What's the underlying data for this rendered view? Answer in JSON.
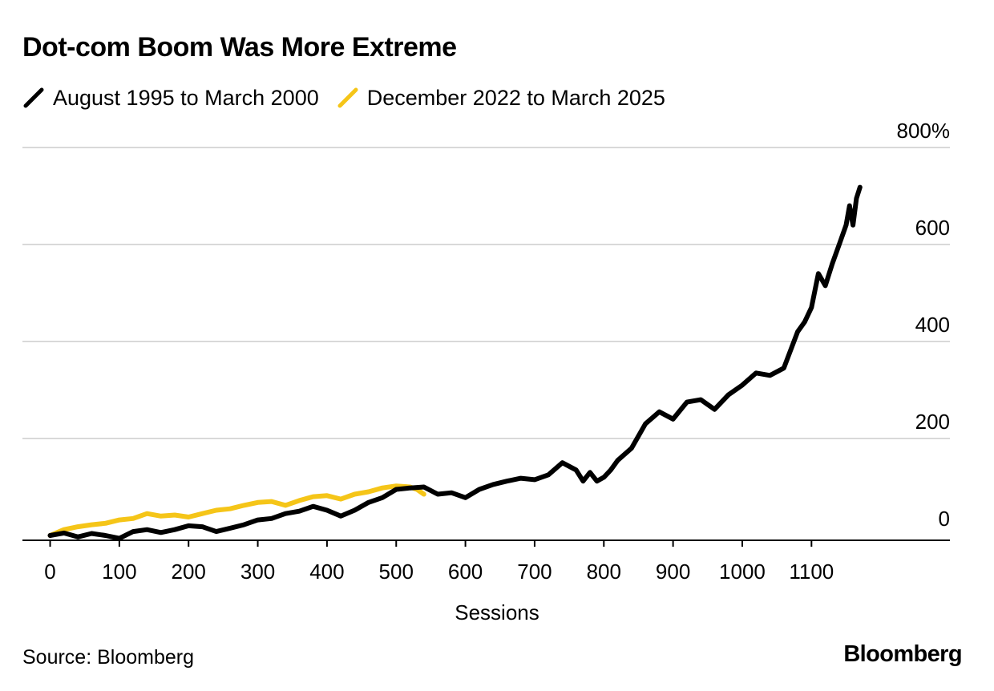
{
  "title": "Dot-com Boom Was More Extreme",
  "source": "Source: Bloomberg",
  "brand": "Bloomberg",
  "chart_data": {
    "type": "line",
    "title": "Dot-com Boom Was More Extreme",
    "xlabel": "Sessions",
    "ylabel": "",
    "xlim": [
      -40,
      1300
    ],
    "ylim": [
      -10,
      800
    ],
    "x_ticks": [
      "0",
      "100",
      "200",
      "300",
      "400",
      "500",
      "600",
      "700",
      "800",
      "900",
      "1000",
      "1100"
    ],
    "x_tick_values": [
      0,
      100,
      200,
      300,
      400,
      500,
      600,
      700,
      800,
      900,
      1000,
      1100
    ],
    "y_ticks": [
      "0",
      "200",
      "400",
      "600",
      "800%"
    ],
    "y_tick_values": [
      0,
      200,
      400,
      600,
      800
    ],
    "grid": "horizontal",
    "legend_position": "top-left",
    "series": [
      {
        "name": "August 1995 to March 2000",
        "color": "#000000",
        "points": [
          [
            0,
            0
          ],
          [
            20,
            5
          ],
          [
            40,
            -3
          ],
          [
            60,
            4
          ],
          [
            80,
            0
          ],
          [
            100,
            -6
          ],
          [
            120,
            8
          ],
          [
            140,
            12
          ],
          [
            160,
            6
          ],
          [
            180,
            12
          ],
          [
            200,
            20
          ],
          [
            220,
            18
          ],
          [
            240,
            8
          ],
          [
            260,
            15
          ],
          [
            280,
            22
          ],
          [
            300,
            32
          ],
          [
            320,
            35
          ],
          [
            340,
            45
          ],
          [
            360,
            50
          ],
          [
            380,
            60
          ],
          [
            400,
            52
          ],
          [
            420,
            40
          ],
          [
            440,
            52
          ],
          [
            460,
            68
          ],
          [
            480,
            78
          ],
          [
            500,
            95
          ],
          [
            520,
            98
          ],
          [
            540,
            100
          ],
          [
            560,
            85
          ],
          [
            580,
            88
          ],
          [
            600,
            78
          ],
          [
            620,
            95
          ],
          [
            640,
            105
          ],
          [
            660,
            112
          ],
          [
            680,
            118
          ],
          [
            700,
            115
          ],
          [
            720,
            125
          ],
          [
            740,
            150
          ],
          [
            760,
            135
          ],
          [
            770,
            112
          ],
          [
            780,
            130
          ],
          [
            790,
            112
          ],
          [
            800,
            120
          ],
          [
            810,
            135
          ],
          [
            820,
            155
          ],
          [
            840,
            180
          ],
          [
            860,
            230
          ],
          [
            880,
            255
          ],
          [
            900,
            240
          ],
          [
            920,
            275
          ],
          [
            940,
            280
          ],
          [
            960,
            260
          ],
          [
            980,
            290
          ],
          [
            1000,
            310
          ],
          [
            1020,
            335
          ],
          [
            1040,
            330
          ],
          [
            1060,
            345
          ],
          [
            1080,
            420
          ],
          [
            1090,
            440
          ],
          [
            1100,
            470
          ],
          [
            1110,
            540
          ],
          [
            1120,
            515
          ],
          [
            1130,
            560
          ],
          [
            1140,
            600
          ],
          [
            1150,
            640
          ],
          [
            1155,
            680
          ],
          [
            1160,
            640
          ],
          [
            1165,
            695
          ],
          [
            1170,
            718
          ]
        ]
      },
      {
        "name": "December 2022 to March 2025",
        "color": "#F5C518",
        "points": [
          [
            0,
            0
          ],
          [
            20,
            12
          ],
          [
            40,
            18
          ],
          [
            60,
            22
          ],
          [
            80,
            25
          ],
          [
            100,
            32
          ],
          [
            120,
            35
          ],
          [
            140,
            45
          ],
          [
            160,
            40
          ],
          [
            180,
            42
          ],
          [
            200,
            38
          ],
          [
            220,
            45
          ],
          [
            240,
            52
          ],
          [
            260,
            55
          ],
          [
            280,
            62
          ],
          [
            300,
            68
          ],
          [
            320,
            70
          ],
          [
            340,
            62
          ],
          [
            360,
            72
          ],
          [
            380,
            80
          ],
          [
            400,
            82
          ],
          [
            420,
            75
          ],
          [
            440,
            85
          ],
          [
            460,
            90
          ],
          [
            480,
            98
          ],
          [
            500,
            102
          ],
          [
            520,
            100
          ],
          [
            530,
            95
          ],
          [
            540,
            85
          ]
        ]
      }
    ]
  }
}
